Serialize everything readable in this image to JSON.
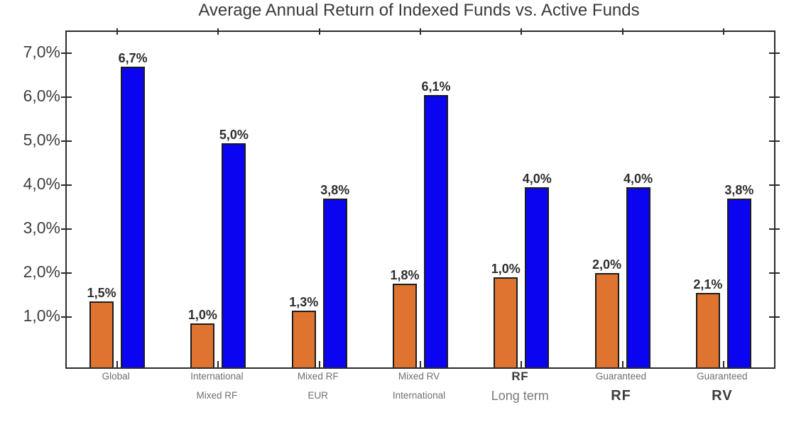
{
  "chart_data": {
    "type": "bar",
    "title": "Average Annual Return of Indexed Funds vs. Active Funds",
    "ylabel": "",
    "xlabel": "",
    "grid": false,
    "legend": "none",
    "y_axis": {
      "tick_labels": [
        "7,0%",
        "6,0%",
        "5,0%",
        "4,0%",
        "3,0%",
        "2,0%",
        "1,0%"
      ],
      "tick_values": [
        7,
        6,
        5,
        4,
        3,
        2,
        1
      ],
      "min": 0,
      "max": 7.3,
      "decimal_separator": "comma"
    },
    "categories": [
      {
        "top": {
          "text": "Global",
          "style": "gray"
        },
        "bottom": {
          "text": "",
          "style": "gray"
        }
      },
      {
        "top": {
          "text": "International",
          "style": "gray"
        },
        "bottom": {
          "text": "Mixed RF",
          "style": "gray"
        }
      },
      {
        "top": {
          "text": "Mixed RF",
          "style": "gray"
        },
        "bottom": {
          "text": "EUR",
          "style": "gray"
        }
      },
      {
        "top": {
          "text": "Mixed RV",
          "style": "gray"
        },
        "bottom": {
          "text": "International",
          "style": "gray"
        }
      },
      {
        "top": {
          "text": "RF",
          "style": "dark-bold"
        },
        "bottom": {
          "text": "Long term",
          "style": "gray-large"
        }
      },
      {
        "top": {
          "text": "Guaranteed",
          "style": "gray"
        },
        "bottom": {
          "text": "RF",
          "style": "dark-bold-large"
        }
      },
      {
        "top": {
          "text": "Guaranteed",
          "style": "gray"
        },
        "bottom": {
          "text": "RV",
          "style": "dark-bold-large"
        }
      }
    ],
    "series": [
      {
        "id": "orange-bars",
        "color": "#de7430",
        "labels": [
          "1,5%",
          "1,0%",
          "1,3%",
          "1,8%",
          "1,0%",
          "2,0%",
          "2,1%"
        ],
        "values": [
          1.5,
          1.0,
          1.3,
          1.8,
          1.0,
          2.0,
          2.1
        ],
        "visual_heights_pct": [
          1.35,
          0.85,
          1.15,
          1.75,
          1.9,
          2.0,
          1.55
        ]
      },
      {
        "id": "blue-bars",
        "color": "#0a04f0",
        "labels": [
          "6,7%",
          "5,0%",
          "3,8%",
          "6,1%",
          "4,0%",
          "4,0%",
          "3,8%"
        ],
        "values": [
          6.7,
          5.0,
          3.8,
          6.1,
          4.0,
          4.0,
          3.8
        ],
        "visual_heights_pct": [
          6.7,
          4.95,
          3.7,
          6.05,
          3.95,
          3.95,
          3.7
        ]
      }
    ]
  }
}
